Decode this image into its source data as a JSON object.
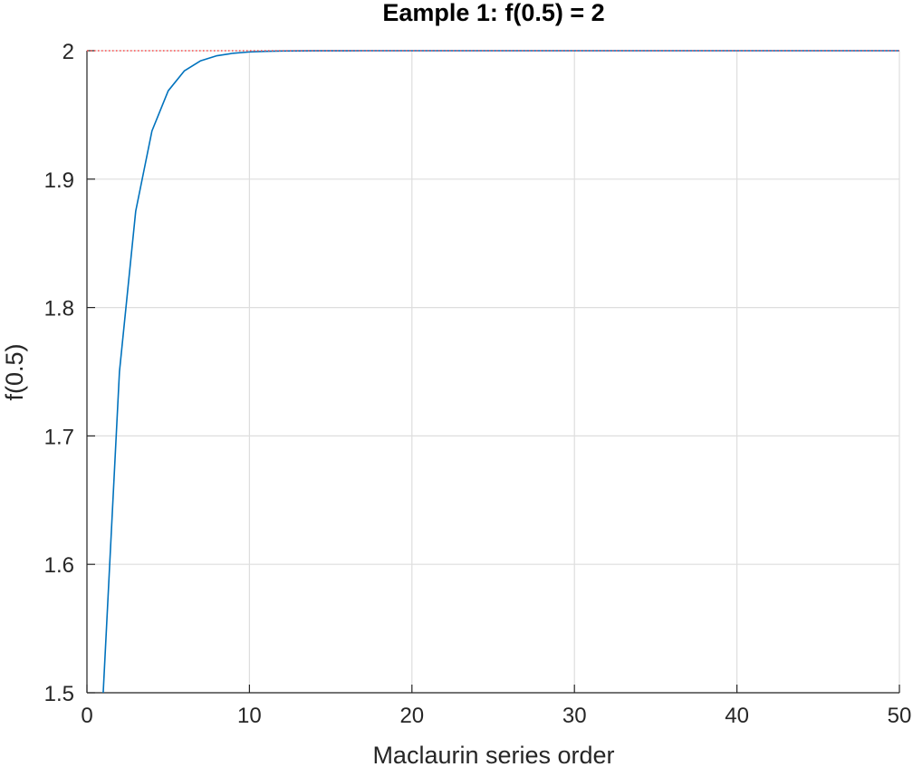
{
  "chart_data": {
    "type": "line",
    "title": "Eample 1: f(0.5) = 2",
    "xlabel": "Maclaurin series order",
    "ylabel": "f(0.5)",
    "xlim": [
      0,
      50
    ],
    "ylim": [
      1.5,
      2
    ],
    "xticks": [
      0,
      10,
      20,
      30,
      40,
      50
    ],
    "xtick_labels": [
      "0",
      "10",
      "20",
      "30",
      "40",
      "50"
    ],
    "yticks": [
      1.5,
      1.6,
      1.7,
      1.8,
      1.9,
      2
    ],
    "ytick_labels": [
      "1.5",
      "1.6",
      "1.7",
      "1.8",
      "1.9",
      "2"
    ],
    "grid": true,
    "series": [
      {
        "color": "#0072bd",
        "style": "solid",
        "x": [
          1,
          2,
          3,
          4,
          5,
          6,
          7,
          8,
          9,
          10,
          11,
          12,
          13,
          14,
          15,
          16,
          17,
          18,
          19,
          20,
          21,
          22,
          23,
          24,
          25,
          26,
          27,
          28,
          29,
          30,
          31,
          32,
          33,
          34,
          35,
          36,
          37,
          38,
          39,
          40,
          41,
          42,
          43,
          44,
          45,
          46,
          47,
          48,
          49,
          50
        ],
        "y": [
          1.5,
          1.75,
          1.875,
          1.9375,
          1.96875,
          1.984375,
          1.9921875,
          1.99609375,
          1.998046875,
          1.9990234375,
          1.99951171875,
          1.999755859375,
          1.9998779296875,
          1.99993896484375,
          1.999969482421875,
          1.9999847412109375,
          1.9999923706054688,
          1.9999961853027344,
          1.9999980926513672,
          1.9999990463256836,
          1.9999995231628418,
          1.999999761581421,
          1.9999998807907104,
          1.9999999403953552,
          1.9999999701976776,
          1.9999999850988388,
          1.9999999925494194,
          1.9999999962747097,
          1.9999999981373549,
          1.9999999990686774,
          1.9999999995343387,
          1.9999999997671694,
          1.9999999998835847,
          1.9999999999417923,
          1.9999999999708962,
          1.999999999985448,
          1.999999999992724,
          1.999999999996362,
          1.999999999998181,
          1.9999999999990905,
          1.9999999999995453,
          1.9999999999997726,
          1.9999999999998863,
          1.9999999999999432,
          1.9999999999999716,
          1.9999999999999858,
          1.999999999999993,
          1.9999999999999964,
          1.9999999999999982,
          1.999999999999999
        ]
      },
      {
        "color": "#ff4d4d",
        "style": "dotted",
        "x": [
          0,
          50
        ],
        "y": [
          2,
          2
        ]
      }
    ]
  }
}
